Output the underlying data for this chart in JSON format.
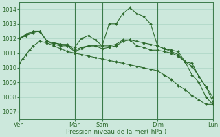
{
  "bg_color": "#cce8dc",
  "grid_color": "#aad4c4",
  "line_color": "#2d6a2d",
  "marker_color": "#2d6a2d",
  "xlabel": "Pression niveau de la mer( hPa )",
  "ylim": [
    1006.5,
    1014.5
  ],
  "yticks": [
    1007,
    1008,
    1009,
    1010,
    1011,
    1012,
    1013,
    1014
  ],
  "xtick_labels": [
    "Ven",
    "Mar",
    "Sam",
    "Dim",
    "Lun"
  ],
  "xtick_positions": [
    0,
    48,
    72,
    120,
    168
  ],
  "vlines": [
    0,
    48,
    72,
    120,
    168
  ],
  "xlim": [
    0,
    168
  ],
  "series1": {
    "x": [
      0,
      3,
      6,
      9,
      12,
      18,
      24,
      30,
      36,
      42,
      48,
      54,
      60,
      66,
      72,
      78,
      84,
      90,
      96,
      102,
      108,
      114,
      120,
      126,
      132,
      138,
      144,
      150,
      156,
      162,
      168
    ],
    "y": [
      1010.3,
      1010.6,
      1010.9,
      1011.2,
      1011.5,
      1011.8,
      1011.7,
      1011.5,
      1011.3,
      1011.1,
      1011.0,
      1010.9,
      1010.8,
      1010.7,
      1010.6,
      1010.5,
      1010.4,
      1010.3,
      1010.2,
      1010.1,
      1010.0,
      1009.9,
      1009.8,
      1009.5,
      1009.2,
      1008.8,
      1008.5,
      1008.1,
      1007.8,
      1007.5,
      1007.5
    ]
  },
  "series2": {
    "x": [
      0,
      6,
      12,
      18,
      24,
      30,
      36,
      42,
      48,
      54,
      60,
      66,
      72,
      78,
      84,
      90,
      96,
      102,
      108,
      114,
      120,
      126,
      132,
      138,
      144,
      150,
      156,
      162,
      168
    ],
    "y": [
      1012.0,
      1012.3,
      1012.5,
      1012.5,
      1011.8,
      1011.6,
      1011.5,
      1011.5,
      1011.1,
      1011.3,
      1011.5,
      1011.5,
      1011.5,
      1013.0,
      1013.0,
      1013.7,
      1014.1,
      1013.7,
      1013.5,
      1013.0,
      1011.5,
      1011.3,
      1011.2,
      1011.1,
      1010.4,
      1010.3,
      1009.4,
      1008.7,
      1007.7
    ]
  },
  "series3": {
    "x": [
      0,
      6,
      12,
      18,
      24,
      30,
      36,
      42,
      48,
      54,
      60,
      66,
      72,
      78,
      84,
      90,
      96,
      102,
      108,
      114,
      120,
      126,
      132,
      138,
      144,
      150,
      156,
      162,
      168
    ],
    "y": [
      1012.0,
      1012.2,
      1012.4,
      1012.5,
      1011.8,
      1011.7,
      1011.6,
      1011.6,
      1011.2,
      1011.4,
      1011.5,
      1011.5,
      1011.3,
      1011.4,
      1011.5,
      1011.8,
      1011.9,
      1011.5,
      1011.4,
      1011.2,
      1011.2,
      1011.1,
      1011.0,
      1010.8,
      1010.4,
      1010.1,
      1009.4,
      1008.7,
      1008.0
    ]
  },
  "series4": {
    "x": [
      0,
      6,
      12,
      18,
      24,
      30,
      36,
      42,
      48,
      54,
      60,
      66,
      72,
      78,
      84,
      90,
      96,
      102,
      108,
      114,
      120,
      126,
      132,
      138,
      144,
      150,
      156,
      162,
      168
    ],
    "y": [
      1012.0,
      1012.2,
      1012.5,
      1012.5,
      1011.8,
      1011.7,
      1011.6,
      1011.5,
      1011.4,
      1012.0,
      1012.2,
      1011.9,
      1011.5,
      1011.5,
      1011.6,
      1011.9,
      1011.9,
      1011.8,
      1011.7,
      1011.6,
      1011.5,
      1011.3,
      1011.1,
      1010.9,
      1010.4,
      1009.5,
      1009.0,
      1008.0,
      1007.5
    ]
  }
}
